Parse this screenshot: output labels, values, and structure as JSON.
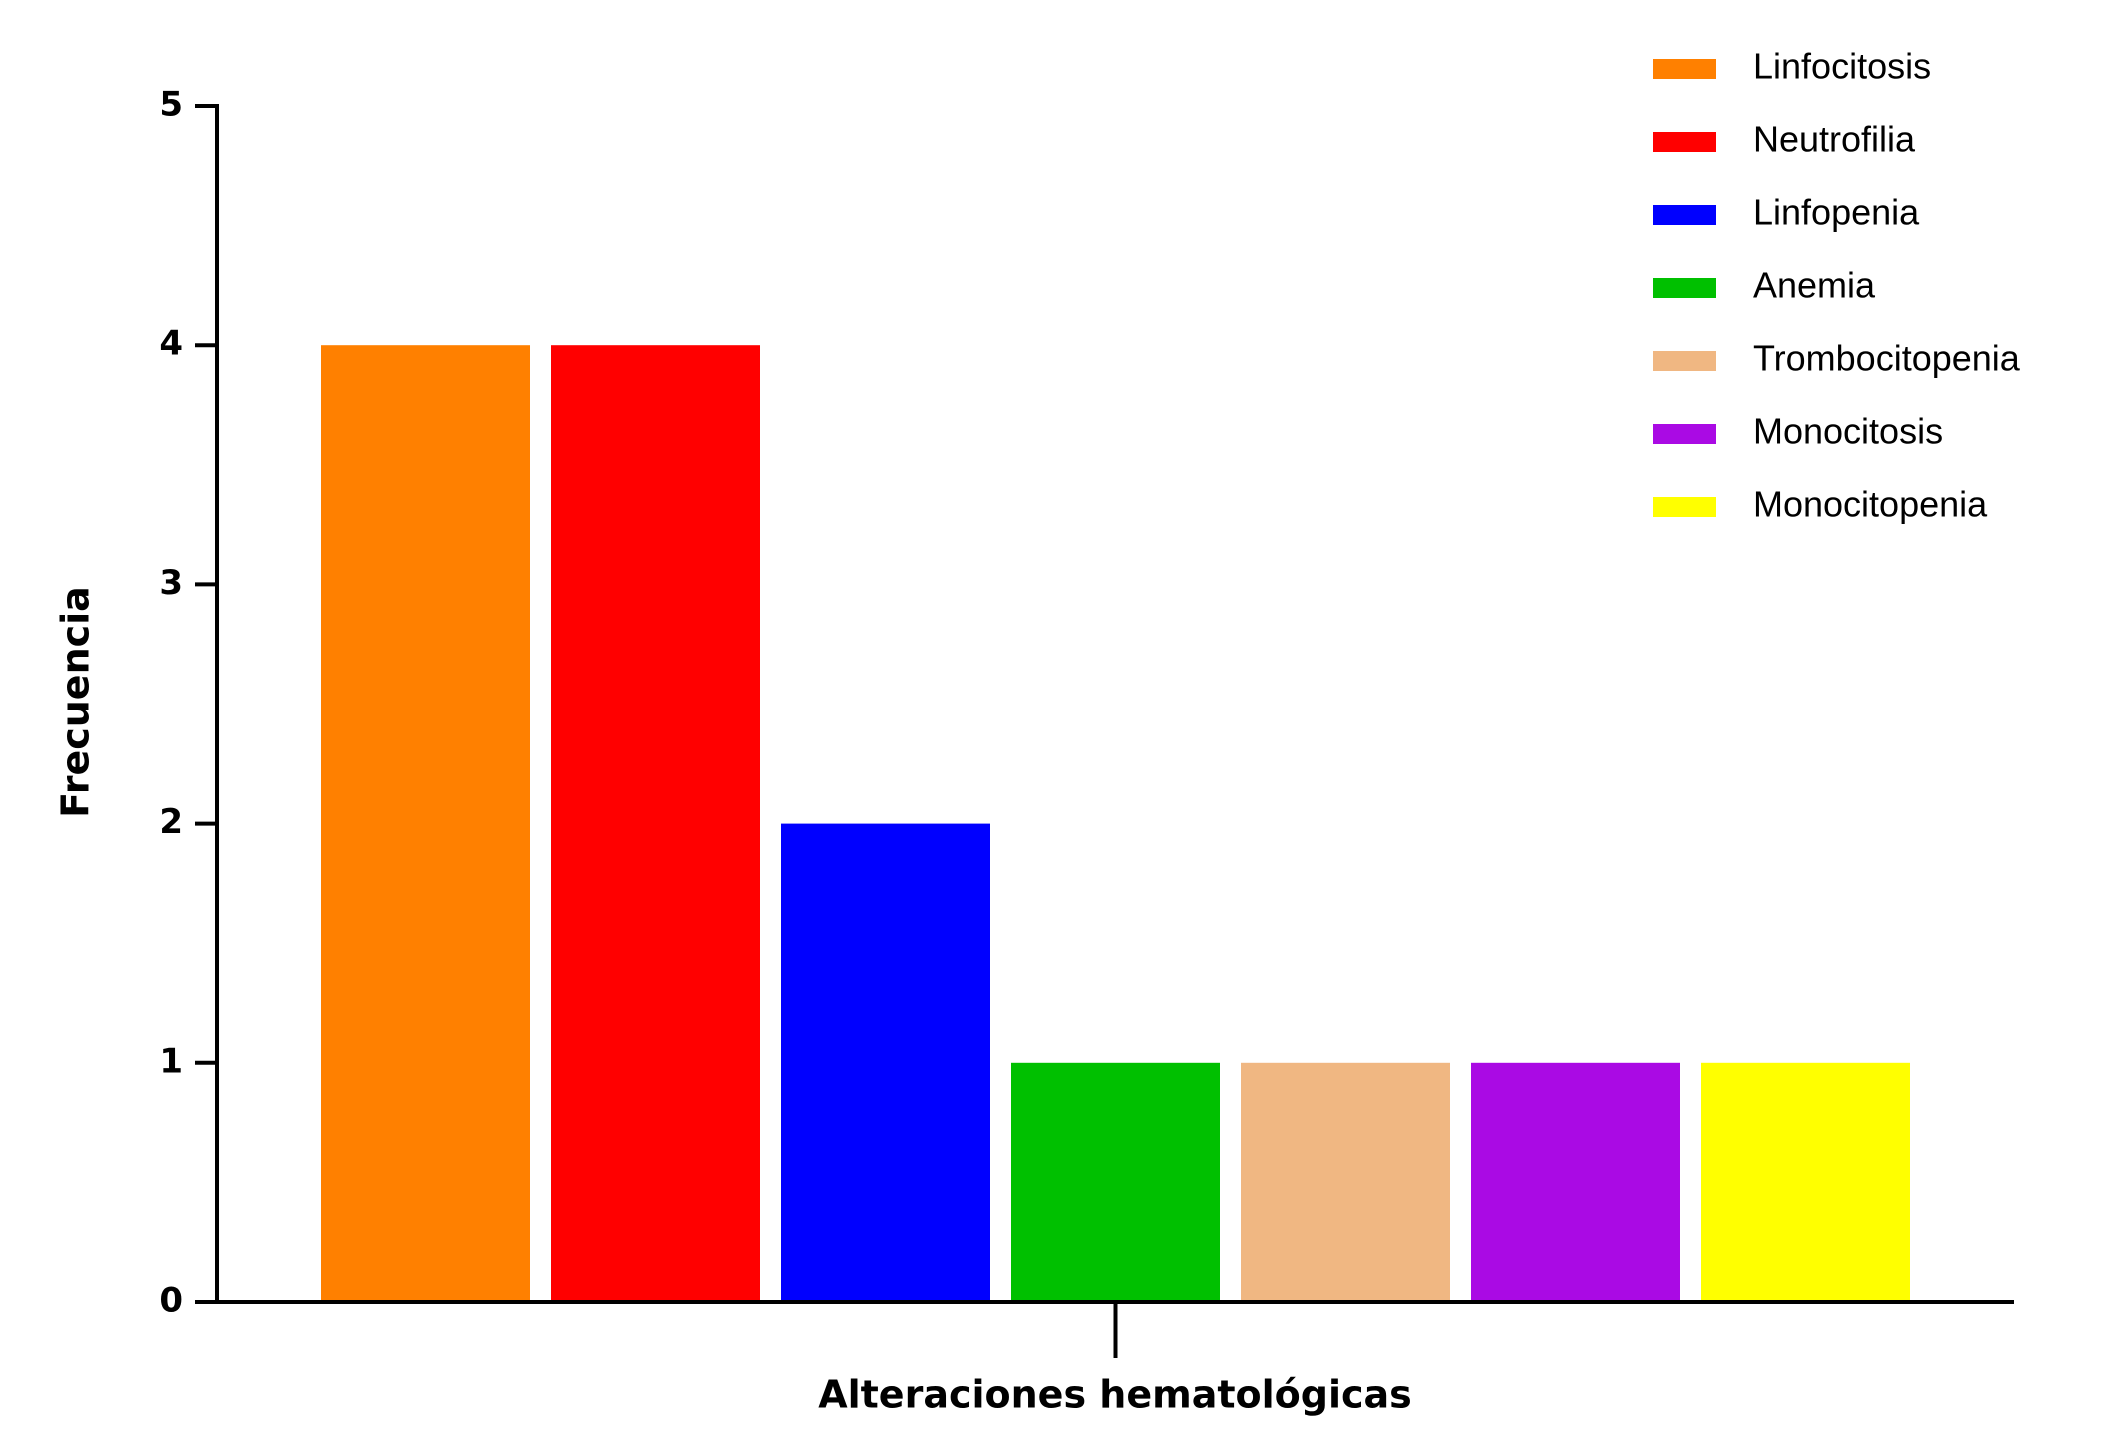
{
  "chart_data": {
    "type": "bar",
    "x_label": "Alteraciones hematológicas",
    "y_label": "Frecuencia",
    "categories": [
      null
    ],
    "series": [
      {
        "name": "Linfocitosis",
        "color": "#ff8000",
        "values": [
          4
        ]
      },
      {
        "name": "Neutrofilia",
        "color": "#ff0000",
        "values": [
          4
        ]
      },
      {
        "name": "Linfopenia",
        "color": "#0000ff",
        "values": [
          2
        ]
      },
      {
        "name": "Anemia",
        "color": "#00c000",
        "values": [
          1
        ]
      },
      {
        "name": "Trombocitopenia",
        "color": "#f0b782",
        "values": [
          1
        ]
      },
      {
        "name": "Monocitosis",
        "color": "#aa0ae4",
        "values": [
          1
        ]
      },
      {
        "name": "Monocitopenia",
        "color": "#ffff00",
        "values": [
          1
        ]
      }
    ],
    "ylim": [
      0,
      5
    ],
    "yticks": [
      0,
      1,
      2,
      3,
      4,
      5
    ],
    "grid": false,
    "legend": "top-right"
  }
}
